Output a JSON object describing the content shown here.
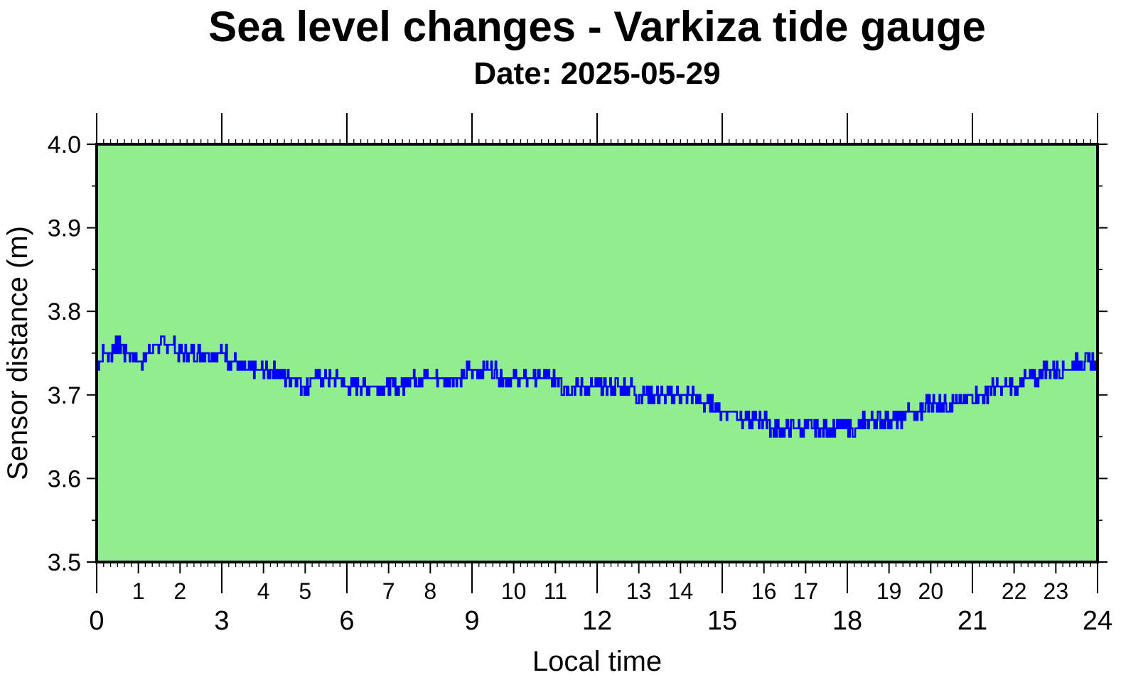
{
  "chart_data": {
    "type": "line",
    "title": "Sea level changes - Varkiza tide gauge",
    "subtitle": "Date: 2025-05-29",
    "xlabel": "Local time",
    "ylabel": "Sensor distance (m)",
    "xlim": [
      0,
      24
    ],
    "ylim": [
      3.5,
      4.0
    ],
    "grid": false,
    "plot_background": "#90EE90",
    "line_color": "#0000FF",
    "x_major_ticks": [
      0,
      3,
      6,
      9,
      12,
      15,
      18,
      21,
      24
    ],
    "x_major_tick_labels": [
      "0",
      "3",
      "6",
      "9",
      "12",
      "15",
      "18",
      "21",
      "24"
    ],
    "x_minor_tick_labels": [
      {
        "value": 1,
        "label": "1"
      },
      {
        "value": 2,
        "label": "2"
      },
      {
        "value": 4,
        "label": "4"
      },
      {
        "value": 5,
        "label": "5"
      },
      {
        "value": 7,
        "label": "7"
      },
      {
        "value": 8,
        "label": "8"
      },
      {
        "value": 10,
        "label": "10"
      },
      {
        "value": 11,
        "label": "11"
      },
      {
        "value": 13,
        "label": "13"
      },
      {
        "value": 14,
        "label": "14"
      },
      {
        "value": 16,
        "label": "16"
      },
      {
        "value": 17,
        "label": "17"
      },
      {
        "value": 19,
        "label": "19"
      },
      {
        "value": 20,
        "label": "20"
      },
      {
        "value": 22,
        "label": "22"
      },
      {
        "value": 23,
        "label": "23"
      }
    ],
    "y_ticks": [
      3.5,
      3.6,
      3.7,
      3.8,
      3.9,
      4.0
    ],
    "y_tick_labels": [
      "3.5",
      "3.6",
      "3.7",
      "3.8",
      "3.9",
      "4.0"
    ],
    "series": [
      {
        "x": [
          0,
          0.25,
          0.5,
          0.75,
          1,
          1.25,
          1.5,
          1.75,
          2,
          2.25,
          2.5,
          2.75,
          3,
          3.25,
          3.5,
          3.75,
          4,
          4.25,
          4.5,
          4.75,
          5,
          5.25,
          5.5,
          5.75,
          6,
          6.25,
          6.5,
          6.75,
          7,
          7.25,
          7.5,
          7.75,
          8,
          8.25,
          8.5,
          8.75,
          9,
          9.25,
          9.5,
          9.75,
          10,
          10.25,
          10.5,
          10.75,
          11,
          11.25,
          11.5,
          11.75,
          12,
          12.25,
          12.5,
          12.75,
          13,
          13.25,
          13.5,
          13.75,
          14,
          14.25,
          14.5,
          14.75,
          15,
          15.25,
          15.5,
          15.75,
          16,
          16.25,
          16.5,
          16.75,
          17,
          17.25,
          17.5,
          17.75,
          18,
          18.25,
          18.5,
          18.75,
          19,
          19.25,
          19.5,
          19.75,
          20,
          20.25,
          20.5,
          20.75,
          21,
          21.25,
          21.5,
          21.75,
          22,
          22.25,
          22.5,
          22.75,
          23,
          23.25,
          23.5,
          23.75,
          24
        ],
        "y": [
          3.74,
          3.75,
          3.76,
          3.75,
          3.74,
          3.75,
          3.76,
          3.76,
          3.75,
          3.75,
          3.75,
          3.75,
          3.75,
          3.74,
          3.73,
          3.73,
          3.73,
          3.73,
          3.72,
          3.72,
          3.71,
          3.72,
          3.72,
          3.72,
          3.71,
          3.71,
          3.71,
          3.71,
          3.71,
          3.71,
          3.72,
          3.72,
          3.72,
          3.72,
          3.72,
          3.72,
          3.73,
          3.73,
          3.73,
          3.72,
          3.72,
          3.72,
          3.72,
          3.72,
          3.72,
          3.71,
          3.71,
          3.71,
          3.71,
          3.71,
          3.71,
          3.71,
          3.7,
          3.7,
          3.7,
          3.7,
          3.7,
          3.7,
          3.69,
          3.69,
          3.68,
          3.68,
          3.67,
          3.67,
          3.67,
          3.66,
          3.66,
          3.66,
          3.66,
          3.66,
          3.66,
          3.66,
          3.66,
          3.66,
          3.67,
          3.67,
          3.67,
          3.67,
          3.68,
          3.68,
          3.69,
          3.69,
          3.69,
          3.69,
          3.7,
          3.7,
          3.71,
          3.71,
          3.71,
          3.72,
          3.72,
          3.73,
          3.73,
          3.73,
          3.74,
          3.74,
          3.74
        ]
      }
    ]
  }
}
